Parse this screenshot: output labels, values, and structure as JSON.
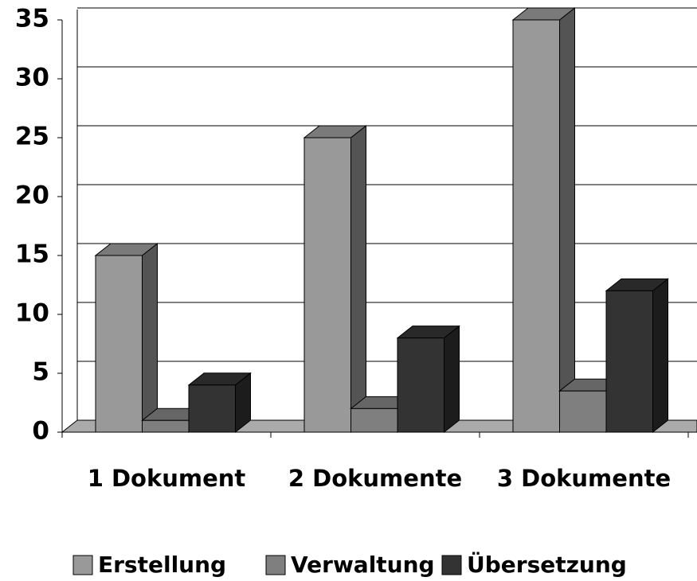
{
  "chart_data": {
    "type": "bar3d",
    "categories": [
      "1 Dokument",
      "2 Dokumente",
      "3 Dokumente"
    ],
    "series": [
      {
        "name": "Erstellung",
        "color": "#999999",
        "values": [
          15,
          25,
          35
        ]
      },
      {
        "name": "Verwaltung",
        "color": "#7f7f7f",
        "values": [
          1,
          2,
          3.5
        ]
      },
      {
        "name": "Übersetzung",
        "color": "#333333",
        "values": [
          4,
          8,
          12
        ]
      }
    ],
    "ylim": [
      0,
      35
    ],
    "yticks": [
      0,
      5,
      10,
      15,
      20,
      25,
      30,
      35
    ],
    "grid": true,
    "legend": "bottom"
  }
}
